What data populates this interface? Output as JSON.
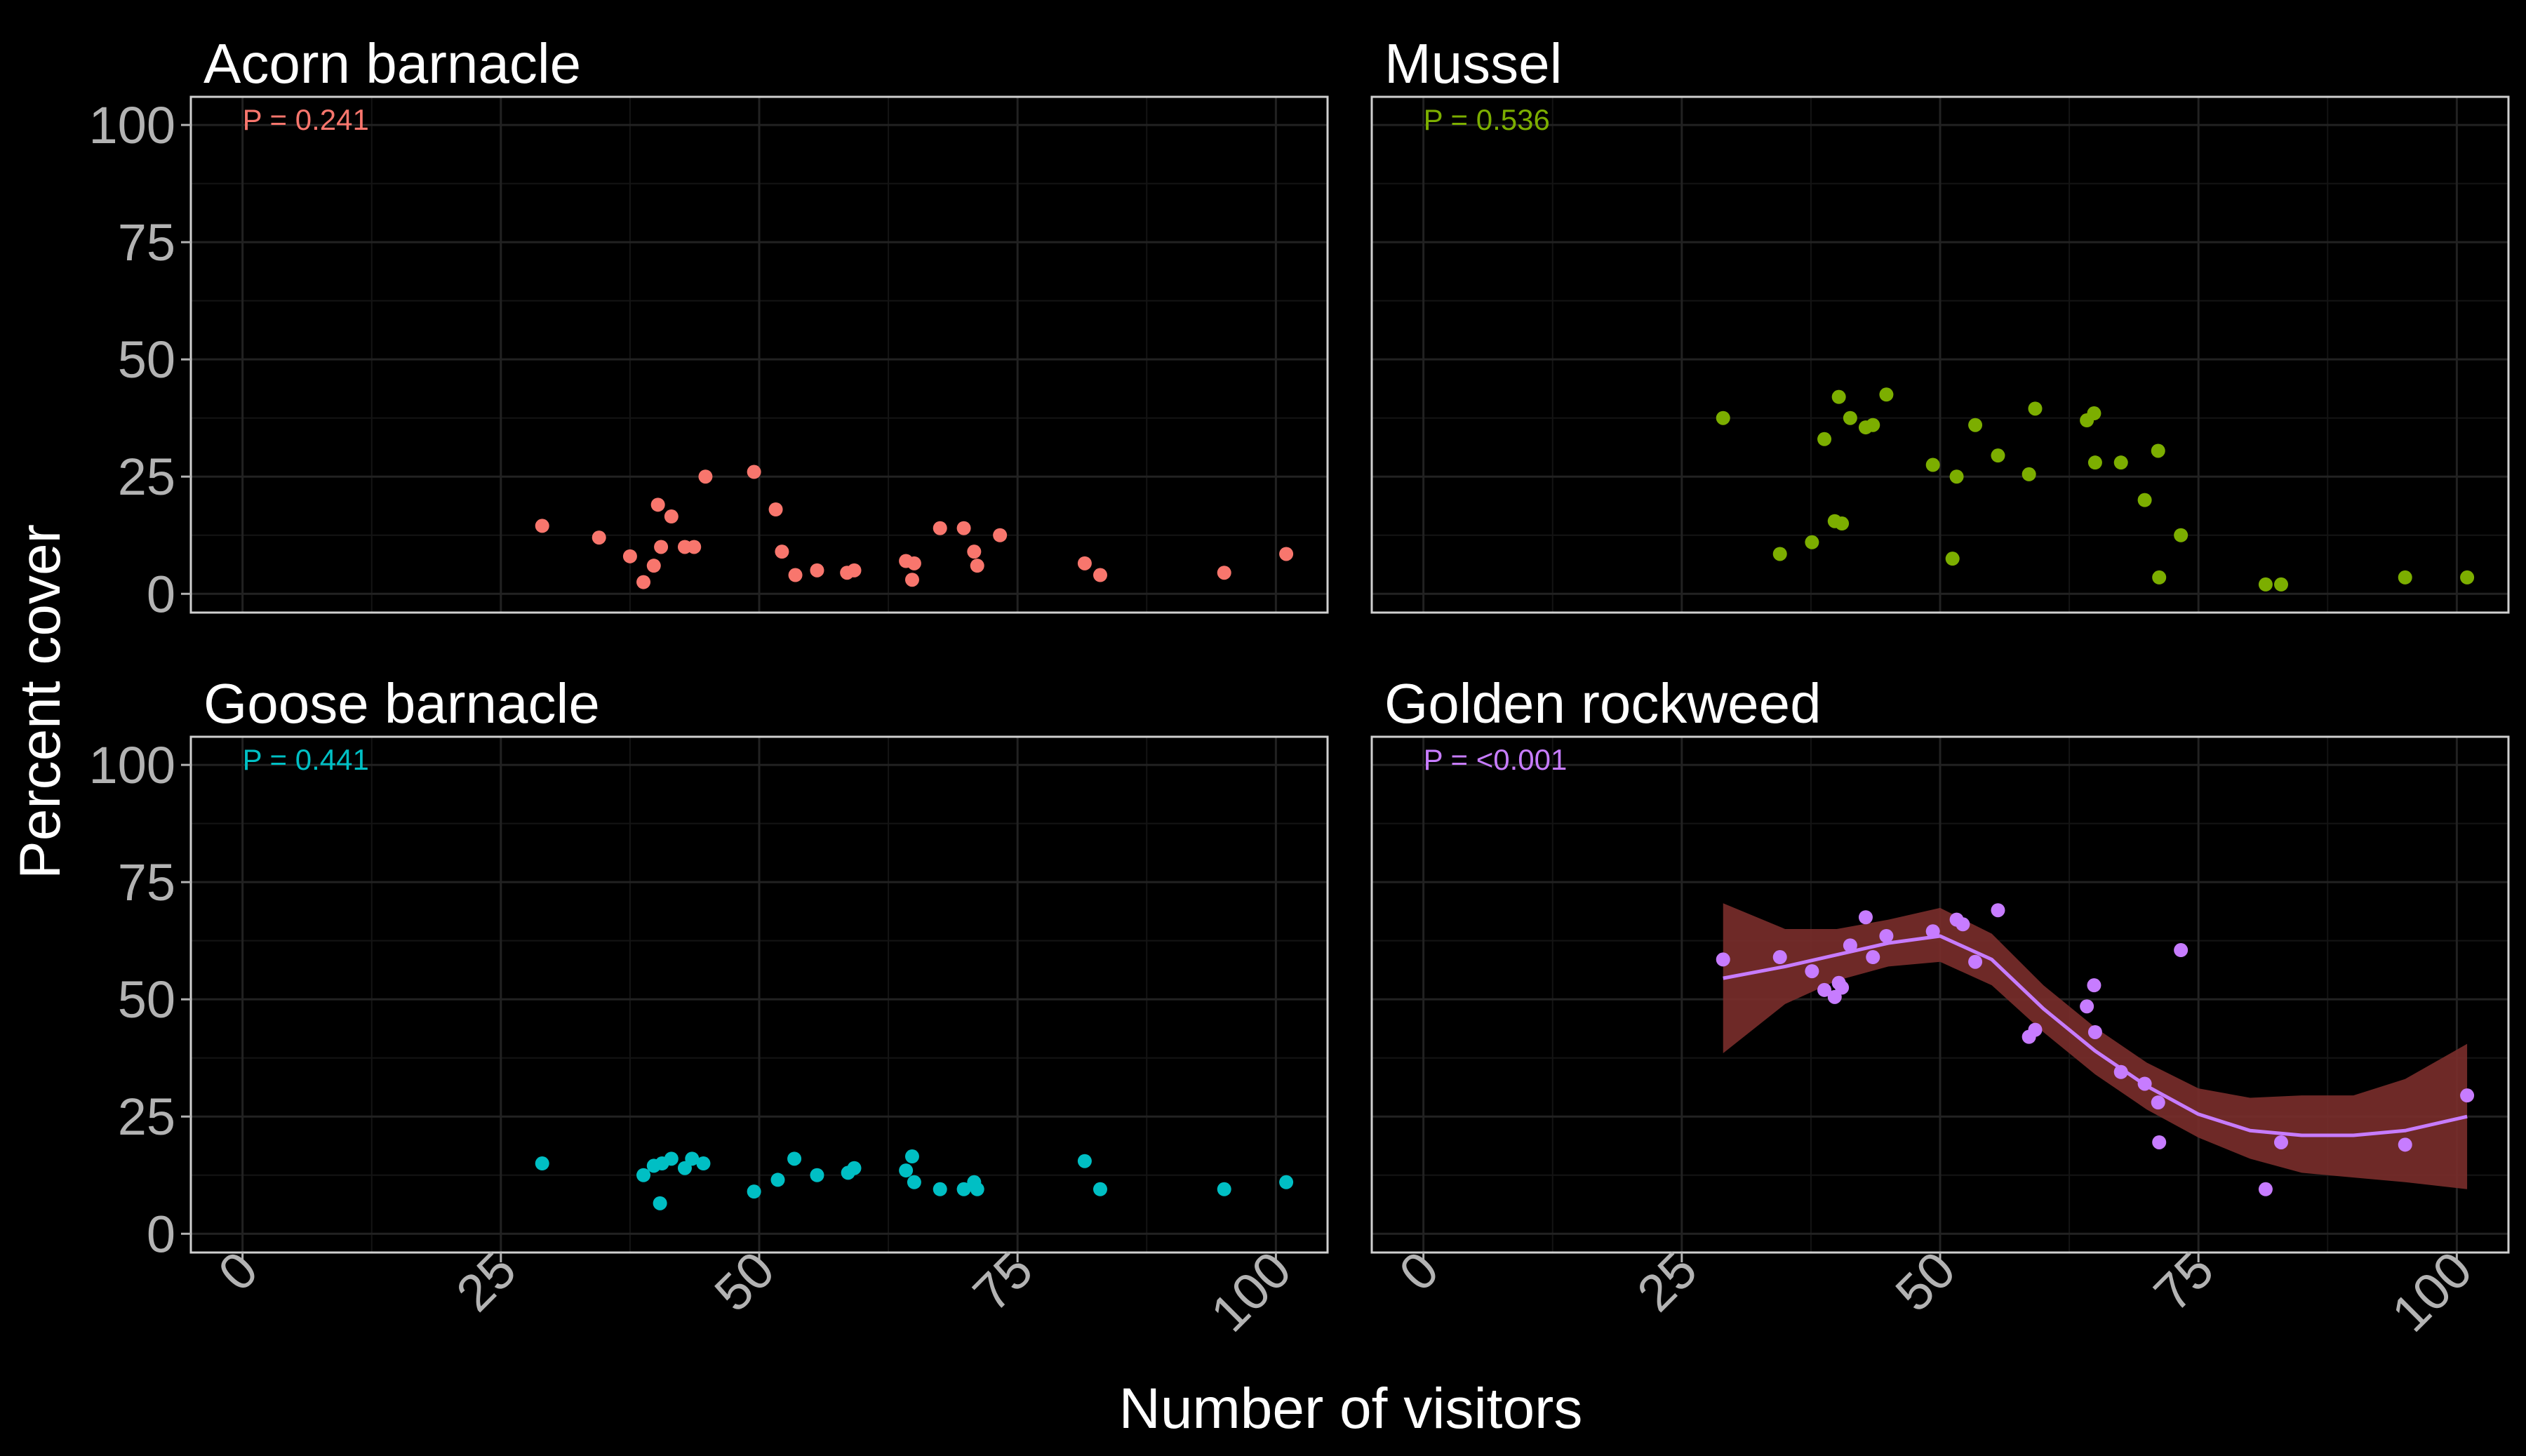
{
  "chart_data": {
    "type": "scatter",
    "xlabel": "Number of visitors",
    "ylabel": "Percent cover",
    "xlim": [
      -5,
      105
    ],
    "ylim": [
      -4,
      106
    ],
    "xticks": [
      0,
      25,
      50,
      75,
      100
    ],
    "yticks": [
      0,
      25,
      50,
      75,
      100
    ],
    "grid": true,
    "panels": [
      {
        "title": "Acorn barnacle",
        "annotation": "P = 0.241",
        "color": "#F8766D",
        "points": [
          {
            "x": 29,
            "y": 14.5
          },
          {
            "x": 34.5,
            "y": 12
          },
          {
            "x": 37.5,
            "y": 8
          },
          {
            "x": 38.8,
            "y": 2.5
          },
          {
            "x": 39.8,
            "y": 6
          },
          {
            "x": 40.2,
            "y": 19
          },
          {
            "x": 40.5,
            "y": 10
          },
          {
            "x": 41.5,
            "y": 16.5
          },
          {
            "x": 42.8,
            "y": 10
          },
          {
            "x": 43.7,
            "y": 10
          },
          {
            "x": 44.8,
            "y": 25
          },
          {
            "x": 49.5,
            "y": 26
          },
          {
            "x": 51.6,
            "y": 18
          },
          {
            "x": 52.2,
            "y": 9
          },
          {
            "x": 53.5,
            "y": 4
          },
          {
            "x": 55.6,
            "y": 5
          },
          {
            "x": 58.5,
            "y": 4.5
          },
          {
            "x": 59.2,
            "y": 5
          },
          {
            "x": 64.2,
            "y": 7
          },
          {
            "x": 64.8,
            "y": 3
          },
          {
            "x": 65,
            "y": 6.5
          },
          {
            "x": 67.5,
            "y": 14
          },
          {
            "x": 69.8,
            "y": 14
          },
          {
            "x": 70.8,
            "y": 9
          },
          {
            "x": 71.1,
            "y": 6
          },
          {
            "x": 73.3,
            "y": 12.5
          },
          {
            "x": 81.5,
            "y": 6.5
          },
          {
            "x": 83,
            "y": 4
          },
          {
            "x": 95,
            "y": 4.5
          },
          {
            "x": 101,
            "y": 8.5
          }
        ]
      },
      {
        "title": "Mussel",
        "annotation": "P = 0.536",
        "color": "#7CAE00",
        "points": [
          {
            "x": 29,
            "y": 37.5
          },
          {
            "x": 34.5,
            "y": 8.5
          },
          {
            "x": 37.6,
            "y": 11
          },
          {
            "x": 38.8,
            "y": 33
          },
          {
            "x": 39.8,
            "y": 15.5
          },
          {
            "x": 40.2,
            "y": 42
          },
          {
            "x": 40.5,
            "y": 15
          },
          {
            "x": 41.3,
            "y": 37.5
          },
          {
            "x": 42.8,
            "y": 35.5
          },
          {
            "x": 43.5,
            "y": 36
          },
          {
            "x": 44.8,
            "y": 42.5
          },
          {
            "x": 49.3,
            "y": 27.5
          },
          {
            "x": 51.2,
            "y": 7.5
          },
          {
            "x": 51.6,
            "y": 25
          },
          {
            "x": 53.4,
            "y": 36
          },
          {
            "x": 55.6,
            "y": 29.5
          },
          {
            "x": 58.6,
            "y": 25.5
          },
          {
            "x": 59.2,
            "y": 39.5
          },
          {
            "x": 64.2,
            "y": 37
          },
          {
            "x": 64.9,
            "y": 38.5
          },
          {
            "x": 65,
            "y": 28
          },
          {
            "x": 67.5,
            "y": 28
          },
          {
            "x": 69.8,
            "y": 20
          },
          {
            "x": 71.1,
            "y": 30.5
          },
          {
            "x": 71.2,
            "y": 3.5
          },
          {
            "x": 73.3,
            "y": 12.5
          },
          {
            "x": 81.5,
            "y": 2
          },
          {
            "x": 83,
            "y": 2
          },
          {
            "x": 95,
            "y": 3.5
          },
          {
            "x": 101,
            "y": 3.5
          }
        ]
      },
      {
        "title": "Goose barnacle",
        "annotation": "P = 0.441",
        "color": "#00BFC4",
        "points": [
          {
            "x": 29,
            "y": 15
          },
          {
            "x": 38.8,
            "y": 12.5
          },
          {
            "x": 39.8,
            "y": 14.5
          },
          {
            "x": 40.4,
            "y": 6.5
          },
          {
            "x": 40.6,
            "y": 15
          },
          {
            "x": 41.5,
            "y": 16
          },
          {
            "x": 42.8,
            "y": 14
          },
          {
            "x": 43.5,
            "y": 16
          },
          {
            "x": 44.6,
            "y": 15
          },
          {
            "x": 49.5,
            "y": 9
          },
          {
            "x": 51.8,
            "y": 11.5
          },
          {
            "x": 53.4,
            "y": 16
          },
          {
            "x": 55.6,
            "y": 12.5
          },
          {
            "x": 58.6,
            "y": 13
          },
          {
            "x": 59.2,
            "y": 14
          },
          {
            "x": 64.2,
            "y": 13.5
          },
          {
            "x": 64.8,
            "y": 16.5
          },
          {
            "x": 65,
            "y": 11
          },
          {
            "x": 67.5,
            "y": 9.5
          },
          {
            "x": 69.8,
            "y": 9.5
          },
          {
            "x": 70.8,
            "y": 11
          },
          {
            "x": 71.1,
            "y": 9.5
          },
          {
            "x": 81.5,
            "y": 15.5
          },
          {
            "x": 83,
            "y": 9.5
          },
          {
            "x": 95,
            "y": 9.5
          },
          {
            "x": 101,
            "y": 11
          }
        ]
      },
      {
        "title": "Golden rockweed",
        "annotation": "P = <0.001",
        "color": "#C77CFF",
        "band_color": "#7a2e2b",
        "points": [
          {
            "x": 29,
            "y": 58.5
          },
          {
            "x": 34.5,
            "y": 59
          },
          {
            "x": 37.6,
            "y": 56
          },
          {
            "x": 38.8,
            "y": 52
          },
          {
            "x": 39.8,
            "y": 50.5
          },
          {
            "x": 40.2,
            "y": 53.5
          },
          {
            "x": 40.5,
            "y": 52.5
          },
          {
            "x": 41.3,
            "y": 61.5
          },
          {
            "x": 42.8,
            "y": 67.5
          },
          {
            "x": 43.5,
            "y": 59
          },
          {
            "x": 44.8,
            "y": 63.5
          },
          {
            "x": 49.3,
            "y": 64.5
          },
          {
            "x": 51.6,
            "y": 67
          },
          {
            "x": 52.2,
            "y": 66
          },
          {
            "x": 53.4,
            "y": 58
          },
          {
            "x": 55.6,
            "y": 69
          },
          {
            "x": 58.6,
            "y": 42
          },
          {
            "x": 59.2,
            "y": 43.5
          },
          {
            "x": 64.2,
            "y": 48.5
          },
          {
            "x": 64.9,
            "y": 53
          },
          {
            "x": 65,
            "y": 43
          },
          {
            "x": 67.5,
            "y": 34.5
          },
          {
            "x": 69.8,
            "y": 32
          },
          {
            "x": 71.1,
            "y": 28
          },
          {
            "x": 71.2,
            "y": 19.5
          },
          {
            "x": 73.3,
            "y": 60.5
          },
          {
            "x": 81.5,
            "y": 9.5
          },
          {
            "x": 83,
            "y": 19.5
          },
          {
            "x": 95,
            "y": 19
          },
          {
            "x": 101,
            "y": 29.5
          }
        ],
        "smooth": [
          {
            "x": 29,
            "y": 54.5,
            "lo": 38.5,
            "hi": 70.5
          },
          {
            "x": 35,
            "y": 57,
            "lo": 49,
            "hi": 65
          },
          {
            "x": 40,
            "y": 59.5,
            "lo": 54,
            "hi": 65
          },
          {
            "x": 45,
            "y": 62,
            "lo": 57,
            "hi": 67
          },
          {
            "x": 50,
            "y": 63.5,
            "lo": 58,
            "hi": 69.5
          },
          {
            "x": 55,
            "y": 58.5,
            "lo": 53,
            "hi": 64
          },
          {
            "x": 60,
            "y": 48,
            "lo": 43,
            "hi": 53
          },
          {
            "x": 65,
            "y": 39,
            "lo": 34,
            "hi": 44
          },
          {
            "x": 70,
            "y": 31.5,
            "lo": 26.5,
            "hi": 36.5
          },
          {
            "x": 75,
            "y": 25.5,
            "lo": 20.5,
            "hi": 31
          },
          {
            "x": 80,
            "y": 22,
            "lo": 16,
            "hi": 29
          },
          {
            "x": 85,
            "y": 21,
            "lo": 13,
            "hi": 29.5
          },
          {
            "x": 90,
            "y": 21,
            "lo": 12,
            "hi": 29.5
          },
          {
            "x": 95,
            "y": 22,
            "lo": 11,
            "hi": 33
          },
          {
            "x": 101,
            "y": 25,
            "lo": 9.5,
            "hi": 40.5
          }
        ]
      }
    ]
  }
}
